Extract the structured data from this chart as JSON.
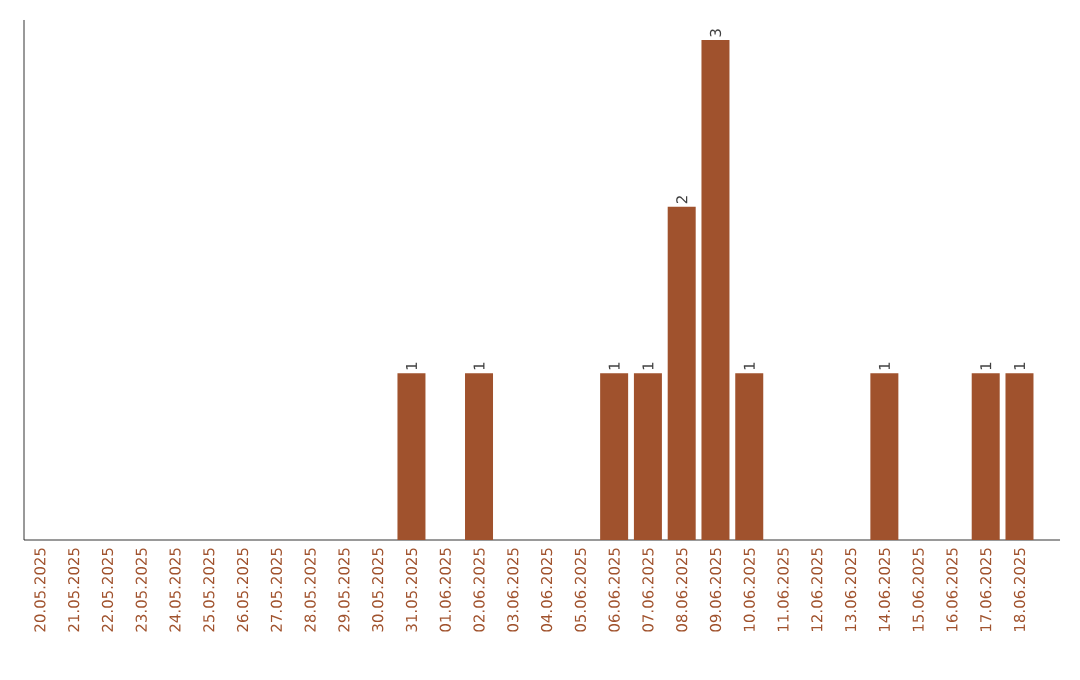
{
  "chart_data": {
    "type": "bar",
    "categories": [
      "20.05.2025",
      "21.05.2025",
      "22.05.2025",
      "23.05.2025",
      "24.05.2025",
      "25.05.2025",
      "26.05.2025",
      "27.05.2025",
      "28.05.2025",
      "29.05.2025",
      "30.05.2025",
      "31.05.2025",
      "01.06.2025",
      "02.06.2025",
      "03.06.2025",
      "04.06.2025",
      "05.06.2025",
      "06.06.2025",
      "07.06.2025",
      "08.06.2025",
      "09.06.2025",
      "10.06.2025",
      "11.06.2025",
      "12.06.2025",
      "13.06.2025",
      "14.06.2025",
      "15.06.2025",
      "16.06.2025",
      "17.06.2025",
      "18.06.2025"
    ],
    "values": [
      0,
      0,
      0,
      0,
      0,
      0,
      0,
      0,
      0,
      0,
      0,
      1,
      0,
      1,
      0,
      0,
      0,
      1,
      1,
      2,
      3,
      1,
      0,
      0,
      0,
      1,
      0,
      0,
      1,
      1
    ],
    "value_labels": [
      null,
      null,
      null,
      null,
      null,
      null,
      null,
      null,
      null,
      null,
      null,
      "1",
      null,
      "1",
      null,
      null,
      null,
      "1",
      "1",
      "2",
      "3",
      "1",
      null,
      null,
      null,
      "1",
      null,
      null,
      "1",
      "1"
    ],
    "color": "#a0522d",
    "tick_labels": "x",
    "grid": false
  }
}
